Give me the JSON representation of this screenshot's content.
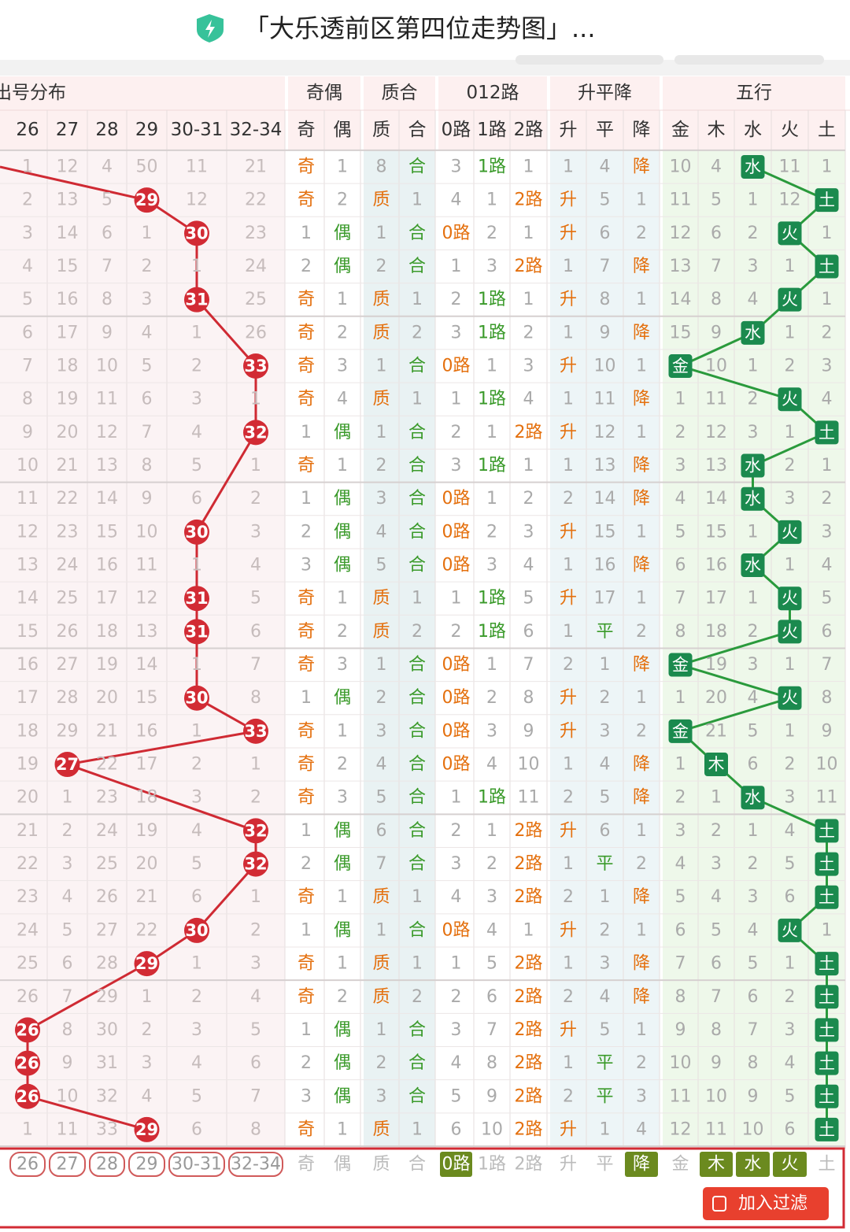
{
  "header": {
    "title": "「大乐透前区第四位走势图」..."
  },
  "table": {
    "groups": [
      "出号分布",
      "奇偶",
      "质合",
      "012路",
      "升平降",
      "五行"
    ],
    "columns": [
      "26",
      "27",
      "28",
      "29",
      "30-31",
      "32-34",
      "奇",
      "偶",
      "质",
      "合",
      "0路",
      "1路",
      "2路",
      "升",
      "平",
      "降",
      "金",
      "木",
      "水",
      "火",
      "土"
    ],
    "rows": [
      {
        "hit": null,
        "cells": [
          1,
          12,
          4,
          50,
          11,
          21,
          "奇",
          1,
          8,
          "合",
          3,
          "1路",
          1,
          1,
          4,
          "降",
          10,
          4,
          "水",
          11,
          1
        ]
      },
      {
        "hit": 3,
        "cells": [
          2,
          13,
          5,
          29,
          12,
          22,
          "奇",
          2,
          "质",
          1,
          4,
          1,
          "2路",
          "升",
          5,
          1,
          11,
          5,
          1,
          12,
          "土"
        ]
      },
      {
        "hit": 4,
        "cells": [
          3,
          14,
          6,
          1,
          30,
          23,
          1,
          "偶",
          1,
          "合",
          "0路",
          2,
          1,
          "升",
          6,
          2,
          12,
          6,
          2,
          "火",
          1
        ]
      },
      {
        "hit": null,
        "cells": [
          4,
          15,
          7,
          2,
          1,
          24,
          2,
          "偶",
          2,
          "合",
          1,
          3,
          "2路",
          1,
          7,
          "降",
          13,
          7,
          3,
          1,
          "土"
        ]
      },
      {
        "hit": 4,
        "cells": [
          5,
          16,
          8,
          3,
          31,
          25,
          "奇",
          1,
          "质",
          1,
          2,
          "1路",
          1,
          "升",
          8,
          1,
          14,
          8,
          4,
          "火",
          1
        ]
      },
      {
        "hit": null,
        "cells": [
          6,
          17,
          9,
          4,
          1,
          26,
          "奇",
          2,
          "质",
          2,
          3,
          "1路",
          2,
          1,
          9,
          "降",
          15,
          9,
          "水",
          1,
          2
        ]
      },
      {
        "hit": 5,
        "cells": [
          7,
          18,
          10,
          5,
          2,
          33,
          "奇",
          3,
          1,
          "合",
          "0路",
          1,
          3,
          "升",
          10,
          1,
          "金",
          10,
          1,
          2,
          3
        ]
      },
      {
        "hit": null,
        "cells": [
          8,
          19,
          11,
          6,
          3,
          1,
          "奇",
          4,
          "质",
          1,
          1,
          "1路",
          4,
          1,
          11,
          "降",
          1,
          11,
          2,
          "火",
          4
        ]
      },
      {
        "hit": 5,
        "cells": [
          9,
          20,
          12,
          7,
          4,
          32,
          1,
          "偶",
          1,
          "合",
          2,
          1,
          "2路",
          "升",
          12,
          1,
          2,
          12,
          3,
          1,
          "土"
        ]
      },
      {
        "hit": null,
        "cells": [
          10,
          21,
          13,
          8,
          5,
          1,
          "奇",
          1,
          2,
          "合",
          3,
          "1路",
          1,
          1,
          13,
          "降",
          3,
          13,
          "水",
          2,
          1
        ]
      },
      {
        "hit": null,
        "cells": [
          11,
          22,
          14,
          9,
          6,
          2,
          1,
          "偶",
          3,
          "合",
          "0路",
          1,
          2,
          2,
          14,
          "降",
          4,
          14,
          "水",
          3,
          2
        ]
      },
      {
        "hit": 4,
        "cells": [
          12,
          23,
          15,
          10,
          30,
          3,
          2,
          "偶",
          4,
          "合",
          "0路",
          2,
          3,
          "升",
          15,
          1,
          5,
          15,
          1,
          "火",
          3
        ]
      },
      {
        "hit": null,
        "cells": [
          13,
          24,
          16,
          11,
          1,
          4,
          3,
          "偶",
          5,
          "合",
          "0路",
          3,
          4,
          1,
          16,
          "降",
          6,
          16,
          "水",
          1,
          4
        ]
      },
      {
        "hit": 4,
        "cells": [
          14,
          25,
          17,
          12,
          31,
          5,
          "奇",
          1,
          "质",
          1,
          1,
          "1路",
          5,
          "升",
          17,
          1,
          7,
          17,
          1,
          "火",
          5
        ]
      },
      {
        "hit": 4,
        "cells": [
          15,
          26,
          18,
          13,
          31,
          6,
          "奇",
          2,
          "质",
          2,
          2,
          "1路",
          6,
          1,
          "平",
          2,
          8,
          18,
          2,
          "火",
          6
        ]
      },
      {
        "hit": null,
        "cells": [
          16,
          27,
          19,
          14,
          1,
          7,
          "奇",
          3,
          1,
          "合",
          "0路",
          1,
          7,
          2,
          1,
          "降",
          "金",
          19,
          3,
          1,
          7
        ]
      },
      {
        "hit": 4,
        "cells": [
          17,
          28,
          20,
          15,
          30,
          8,
          1,
          "偶",
          2,
          "合",
          "0路",
          2,
          8,
          "升",
          2,
          1,
          1,
          20,
          4,
          "火",
          8
        ]
      },
      {
        "hit": 5,
        "cells": [
          18,
          29,
          21,
          16,
          1,
          33,
          "奇",
          1,
          3,
          "合",
          "0路",
          3,
          9,
          "升",
          3,
          2,
          "金",
          21,
          5,
          1,
          9
        ]
      },
      {
        "hit": 1,
        "cells": [
          19,
          27,
          22,
          17,
          2,
          1,
          "奇",
          2,
          4,
          "合",
          "0路",
          4,
          10,
          1,
          4,
          "降",
          1,
          "木",
          6,
          2,
          10
        ]
      },
      {
        "hit": null,
        "cells": [
          20,
          1,
          23,
          18,
          3,
          2,
          "奇",
          3,
          5,
          "合",
          1,
          "1路",
          11,
          2,
          5,
          "降",
          2,
          1,
          "水",
          3,
          11
        ]
      },
      {
        "hit": 5,
        "cells": [
          21,
          2,
          24,
          19,
          4,
          32,
          1,
          "偶",
          6,
          "合",
          2,
          1,
          "2路",
          "升",
          6,
          1,
          3,
          2,
          1,
          4,
          "土"
        ]
      },
      {
        "hit": 5,
        "cells": [
          22,
          3,
          25,
          20,
          5,
          32,
          2,
          "偶",
          7,
          "合",
          3,
          2,
          "2路",
          1,
          "平",
          2,
          4,
          3,
          2,
          5,
          "土"
        ]
      },
      {
        "hit": null,
        "cells": [
          23,
          4,
          26,
          21,
          6,
          1,
          "奇",
          1,
          "质",
          1,
          4,
          3,
          "2路",
          2,
          1,
          "降",
          5,
          4,
          3,
          6,
          "土"
        ]
      },
      {
        "hit": 4,
        "cells": [
          24,
          5,
          27,
          22,
          30,
          2,
          1,
          "偶",
          1,
          "合",
          "0路",
          4,
          1,
          "升",
          2,
          1,
          6,
          5,
          4,
          "火",
          1
        ]
      },
      {
        "hit": 3,
        "cells": [
          25,
          6,
          28,
          29,
          1,
          3,
          "奇",
          1,
          "质",
          1,
          1,
          5,
          "2路",
          1,
          3,
          "降",
          7,
          6,
          5,
          1,
          "土"
        ]
      },
      {
        "hit": null,
        "cells": [
          26,
          7,
          29,
          1,
          2,
          4,
          "奇",
          2,
          "质",
          2,
          2,
          6,
          "2路",
          2,
          4,
          "降",
          8,
          7,
          6,
          2,
          "土"
        ]
      },
      {
        "hit": 0,
        "cells": [
          26,
          8,
          30,
          2,
          3,
          5,
          1,
          "偶",
          1,
          "合",
          3,
          7,
          "2路",
          "升",
          5,
          1,
          9,
          8,
          7,
          3,
          "土"
        ]
      },
      {
        "hit": 0,
        "cells": [
          26,
          9,
          31,
          3,
          4,
          6,
          2,
          "偶",
          2,
          "合",
          4,
          8,
          "2路",
          1,
          "平",
          2,
          10,
          9,
          8,
          4,
          "土"
        ]
      },
      {
        "hit": 0,
        "cells": [
          26,
          10,
          32,
          4,
          5,
          7,
          3,
          "偶",
          3,
          "合",
          5,
          9,
          "2路",
          2,
          "平",
          3,
          11,
          10,
          9,
          5,
          "土"
        ]
      },
      {
        "hit": 3,
        "cells": [
          1,
          11,
          33,
          29,
          6,
          8,
          "奇",
          1,
          "质",
          1,
          6,
          10,
          "2路",
          "升",
          1,
          4,
          12,
          11,
          10,
          6,
          "土"
        ]
      }
    ],
    "filter": {
      "options": [
        "26",
        "27",
        "28",
        "29",
        "30-31",
        "32-34",
        "奇",
        "偶",
        "质",
        "合",
        "0路",
        "1路",
        "2路",
        "升",
        "平",
        "降",
        "金",
        "木",
        "水",
        "火",
        "土"
      ],
      "selected": [
        false,
        false,
        false,
        false,
        false,
        false,
        false,
        false,
        false,
        false,
        true,
        false,
        false,
        false,
        false,
        true,
        false,
        true,
        true,
        true,
        false
      ],
      "button": "加入过滤"
    }
  }
}
